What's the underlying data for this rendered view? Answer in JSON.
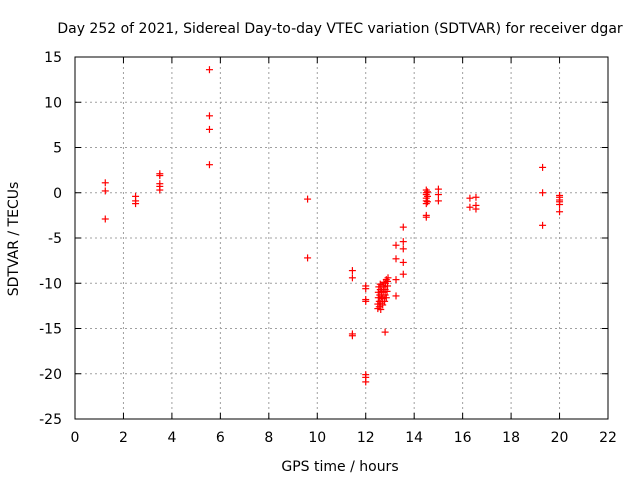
{
  "chart_data": {
    "type": "scatter",
    "title": "Day 252 of 2021, Sidereal Day-to-day VTEC variation (SDTVAR) for receiver dgar",
    "xlabel": "GPS time / hours",
    "ylabel": "SDTVAR / TECUs",
    "xlim": [
      0,
      22
    ],
    "ylim": [
      -25,
      15
    ],
    "xticks": [
      0,
      2,
      4,
      6,
      8,
      10,
      12,
      14,
      16,
      18,
      20,
      22
    ],
    "yticks": [
      15,
      10,
      5,
      0,
      -5,
      -10,
      -15,
      -20,
      -25
    ],
    "grid": true,
    "marker": "+",
    "color": "#ff0000",
    "series": [
      {
        "name": "SDTVAR",
        "points": [
          [
            1.25,
            1.1
          ],
          [
            1.25,
            0.2
          ],
          [
            1.25,
            -2.9
          ],
          [
            2.5,
            -0.4
          ],
          [
            2.5,
            -0.9
          ],
          [
            2.5,
            -1.2
          ],
          [
            3.5,
            2.1
          ],
          [
            3.5,
            1.9
          ],
          [
            3.5,
            1.0
          ],
          [
            3.5,
            0.7
          ],
          [
            3.5,
            0.3
          ],
          [
            5.55,
            13.6
          ],
          [
            5.55,
            8.5
          ],
          [
            5.55,
            7.0
          ],
          [
            5.55,
            3.1
          ],
          [
            9.6,
            -0.7
          ],
          [
            9.6,
            -7.2
          ],
          [
            11.45,
            -8.6
          ],
          [
            11.45,
            -9.4
          ],
          [
            11.45,
            -15.6
          ],
          [
            11.45,
            -15.8
          ],
          [
            12.0,
            -10.3
          ],
          [
            12.0,
            -10.6
          ],
          [
            12.0,
            -11.8
          ],
          [
            12.0,
            -12.0
          ],
          [
            12.0,
            -20.1
          ],
          [
            12.0,
            -20.4
          ],
          [
            12.0,
            -20.9
          ],
          [
            12.5,
            -12.8
          ],
          [
            12.5,
            -12.3
          ],
          [
            12.52,
            -11.6
          ],
          [
            12.52,
            -11.0
          ],
          [
            12.54,
            -10.4
          ],
          [
            12.56,
            -12.6
          ],
          [
            12.56,
            -12.0
          ],
          [
            12.58,
            -11.3
          ],
          [
            12.6,
            -10.7
          ],
          [
            12.6,
            -10.1
          ],
          [
            12.62,
            -12.9
          ],
          [
            12.62,
            -12.2
          ],
          [
            12.65,
            -11.5
          ],
          [
            12.65,
            -10.9
          ],
          [
            12.67,
            -10.2
          ],
          [
            12.7,
            -12.4
          ],
          [
            12.7,
            -11.7
          ],
          [
            12.72,
            -11.0
          ],
          [
            12.74,
            -10.4
          ],
          [
            12.75,
            -9.9
          ],
          [
            12.78,
            -12.0
          ],
          [
            12.8,
            -11.3
          ],
          [
            12.8,
            -10.7
          ],
          [
            12.82,
            -10.0
          ],
          [
            12.85,
            -9.6
          ],
          [
            12.85,
            -11.6
          ],
          [
            12.88,
            -10.9
          ],
          [
            12.9,
            -10.3
          ],
          [
            12.9,
            -9.8
          ],
          [
            12.92,
            -9.4
          ],
          [
            12.8,
            -15.4
          ],
          [
            13.25,
            -5.8
          ],
          [
            13.25,
            -7.3
          ],
          [
            13.25,
            -9.6
          ],
          [
            13.25,
            -11.4
          ],
          [
            13.55,
            -3.8
          ],
          [
            13.55,
            -5.4
          ],
          [
            13.55,
            -6.2
          ],
          [
            13.55,
            -7.7
          ],
          [
            13.55,
            -9.0
          ],
          [
            14.5,
            0.3
          ],
          [
            14.5,
            0.0
          ],
          [
            14.5,
            -0.2
          ],
          [
            14.5,
            -0.6
          ],
          [
            14.5,
            -0.9
          ],
          [
            14.5,
            -1.2
          ],
          [
            14.5,
            -2.5
          ],
          [
            14.5,
            -2.7
          ],
          [
            14.55,
            0.1
          ],
          [
            14.55,
            -0.4
          ],
          [
            14.55,
            -1.0
          ],
          [
            15.0,
            0.4
          ],
          [
            15.0,
            -0.2
          ],
          [
            15.0,
            -0.9
          ],
          [
            16.3,
            -0.6
          ],
          [
            16.3,
            -1.6
          ],
          [
            16.55,
            -0.5
          ],
          [
            16.55,
            -1.4
          ],
          [
            16.55,
            -1.8
          ],
          [
            19.3,
            2.8
          ],
          [
            19.3,
            0.0
          ],
          [
            19.3,
            -3.6
          ],
          [
            20.0,
            -0.3
          ],
          [
            20.0,
            -0.5
          ],
          [
            20.0,
            -0.8
          ],
          [
            20.0,
            -1.0
          ],
          [
            20.0,
            -1.3
          ],
          [
            20.0,
            -2.1
          ]
        ]
      }
    ]
  }
}
